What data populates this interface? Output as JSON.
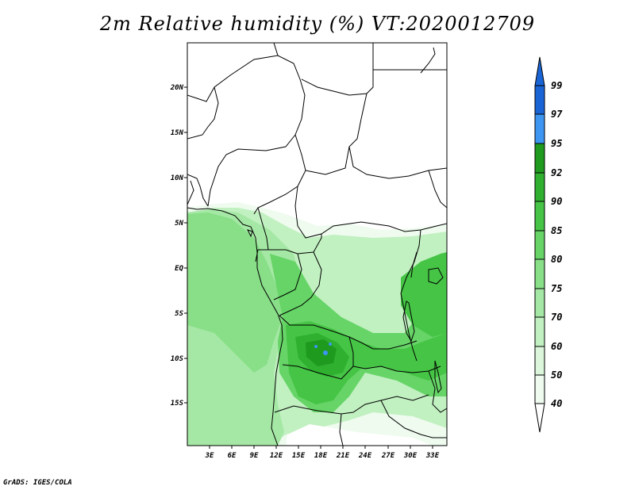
{
  "title": "2m Relative humidity (%) VT:2020012709",
  "credit": "GrADS: IGES/COLA",
  "map": {
    "lat_range": [
      -20,
      25
    ],
    "lon_range": [
      0,
      35
    ],
    "lat_labels": [
      "20N",
      "15N",
      "10N",
      "5N",
      "EQ",
      "5S",
      "10S",
      "15S"
    ],
    "lon_labels": [
      "3E",
      "6E",
      "9E",
      "12E",
      "15E",
      "18E",
      "21E",
      "24E",
      "27E",
      "30E",
      "33E"
    ]
  },
  "colorbar": {
    "labels": [
      "99",
      "97",
      "95",
      "92",
      "90",
      "85",
      "80",
      "75",
      "70",
      "60",
      "50",
      "40"
    ],
    "colors": {
      "c97_99": "#1a65d6",
      "c95_97": "#3c96f2",
      "c92_95": "#1e9a1e",
      "c90_92": "#2fb02f",
      "c85_90": "#45c445",
      "c80_85": "#66d466",
      "c75_80": "#88df88",
      "c70_75": "#a5e8a5",
      "c60_70": "#c1f0c1",
      "c50_60": "#dbf6db",
      "c40_50": "#eefbee"
    }
  }
}
